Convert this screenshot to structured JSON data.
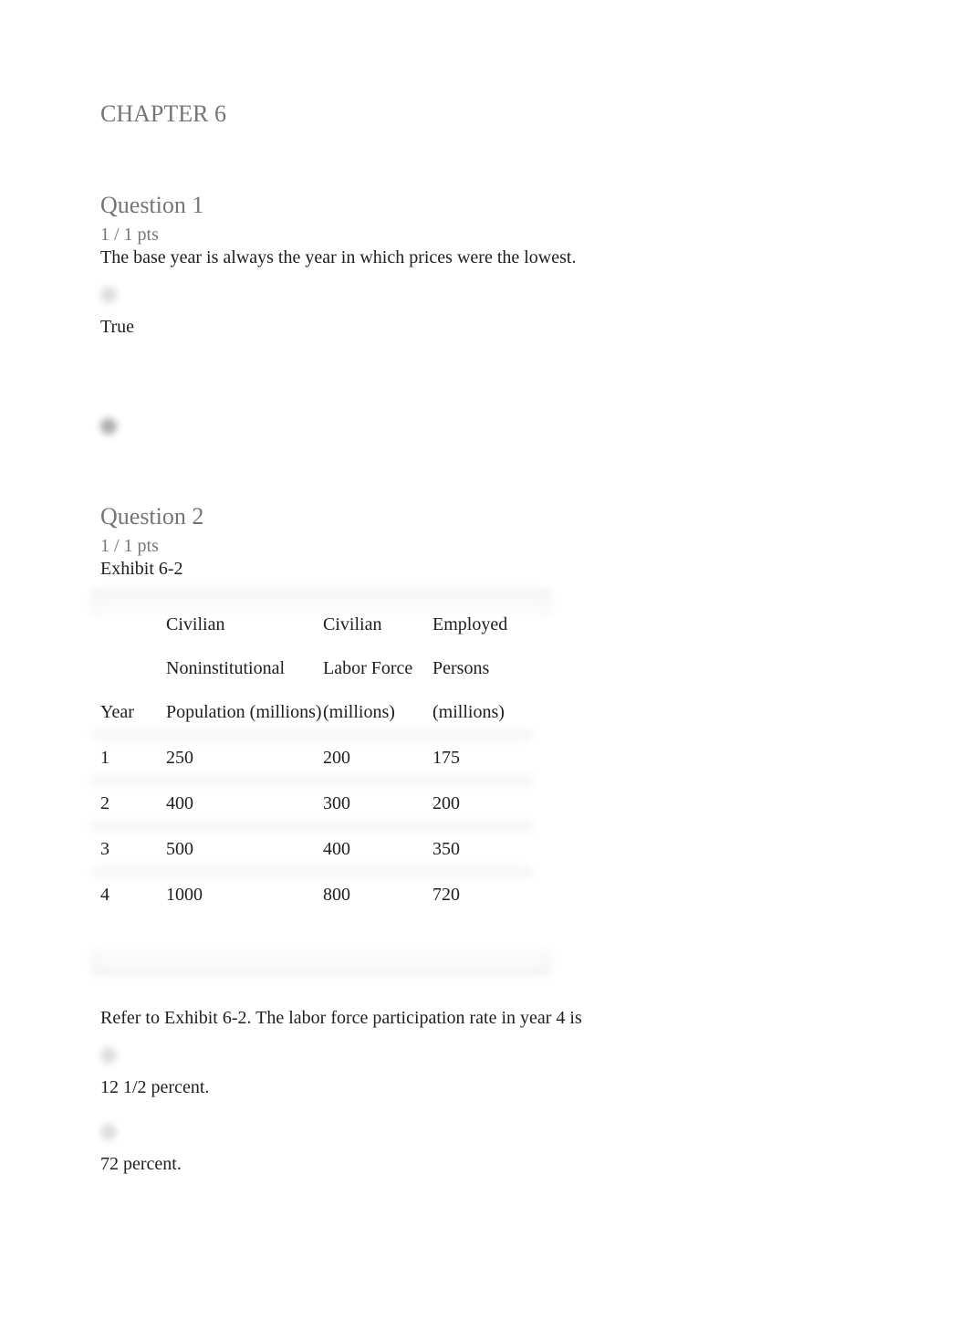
{
  "chapter_title": "CHAPTER 6",
  "q1": {
    "title": "Question 1",
    "points": "1 / 1 pts",
    "text": "The base year is always the year in which prices were the lowest.",
    "opt_true": "True"
  },
  "q2": {
    "title": "Question 2",
    "points": "1 / 1 pts",
    "exhibit": "Exhibit 6-2",
    "table": {
      "h0": "Year",
      "h1a": "Civilian",
      "h1b": "Noninstitutional",
      "h1c": "Population (millions)",
      "h2a": "Civilian",
      "h2b": "Labor Force",
      "h2c": "(millions)",
      "h3a": "Employed",
      "h3b": "Persons",
      "h3c": "(millions)",
      "r1": {
        "year": "1",
        "pop": "250",
        "lf": "200",
        "emp": "175"
      },
      "r2": {
        "year": "2",
        "pop": "400",
        "lf": "300",
        "emp": "200"
      },
      "r3": {
        "year": "3",
        "pop": "500",
        "lf": "400",
        "emp": "350"
      },
      "r4": {
        "year": "4",
        "pop": "1000",
        "lf": "800",
        "emp": "720"
      }
    },
    "prompt": "Refer to Exhibit 6-2. The labor force participation rate in year 4 is",
    "optA": "12 1/2 percent.",
    "optB": "72 percent."
  },
  "colors": {
    "heading": "#757575",
    "body": "#202020",
    "bg": "#ffffff"
  }
}
